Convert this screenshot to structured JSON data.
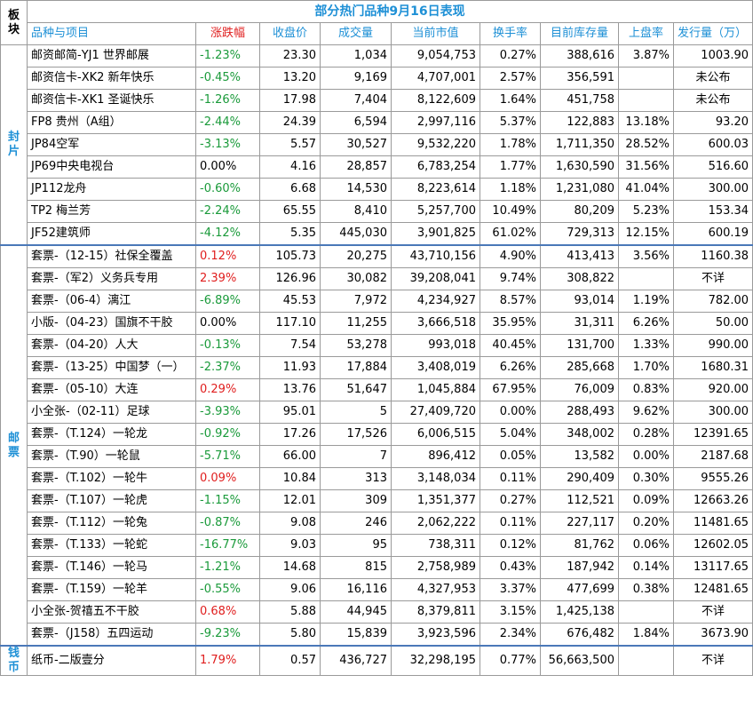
{
  "header": {
    "block_label": "板块",
    "title": "部分热门品种9月16日表现",
    "columns": [
      "品种与项目",
      "涨跌幅",
      "收盘价",
      "成交量",
      "当前市值",
      "换手率",
      "目前库存量",
      "上盘率",
      "发行量（万）"
    ]
  },
  "groups": [
    {
      "label": "封片",
      "rows": [
        {
          "name": "邮资邮简-YJ1 世界邮展",
          "change": "-1.23%",
          "close": "23.30",
          "volume": "1,034",
          "market_value": "9,054,753",
          "turnover": "0.27%",
          "inventory": "388,616",
          "listing_rate": "3.87%",
          "issue": "1003.90"
        },
        {
          "name": "邮资信卡-XK2 新年快乐",
          "change": "-0.45%",
          "close": "13.20",
          "volume": "9,169",
          "market_value": "4,707,001",
          "turnover": "2.57%",
          "inventory": "356,591",
          "listing_rate": "",
          "issue": "未公布"
        },
        {
          "name": "邮资信卡-XK1 圣诞快乐",
          "change": "-1.26%",
          "close": "17.98",
          "volume": "7,404",
          "market_value": "8,122,609",
          "turnover": "1.64%",
          "inventory": "451,758",
          "listing_rate": "",
          "issue": "未公布"
        },
        {
          "name": "FP8 贵州（A组）",
          "change": "-2.44%",
          "close": "24.39",
          "volume": "6,594",
          "market_value": "2,997,116",
          "turnover": "5.37%",
          "inventory": "122,883",
          "listing_rate": "13.18%",
          "issue": "93.20"
        },
        {
          "name": "JP84空军",
          "change": "-3.13%",
          "close": "5.57",
          "volume": "30,527",
          "market_value": "9,532,220",
          "turnover": "1.78%",
          "inventory": "1,711,350",
          "listing_rate": "28.52%",
          "issue": "600.03"
        },
        {
          "name": "JP69中央电视台",
          "change": "0.00%",
          "close": "4.16",
          "volume": "28,857",
          "market_value": "6,783,254",
          "turnover": "1.77%",
          "inventory": "1,630,590",
          "listing_rate": "31.56%",
          "issue": "516.60"
        },
        {
          "name": "JP112龙舟",
          "change": "-0.60%",
          "close": "6.68",
          "volume": "14,530",
          "market_value": "8,223,614",
          "turnover": "1.18%",
          "inventory": "1,231,080",
          "listing_rate": "41.04%",
          "issue": "300.00"
        },
        {
          "name": "TP2 梅兰芳",
          "change": "-2.24%",
          "close": "65.55",
          "volume": "8,410",
          "market_value": "5,257,700",
          "turnover": "10.49%",
          "inventory": "80,209",
          "listing_rate": "5.23%",
          "issue": "153.34"
        },
        {
          "name": "JF52建筑师",
          "change": "-4.12%",
          "close": "5.35",
          "volume": "445,030",
          "market_value": "3,901,825",
          "turnover": "61.02%",
          "inventory": "729,313",
          "listing_rate": "12.15%",
          "issue": "600.19"
        }
      ]
    },
    {
      "label": "邮票",
      "rows": [
        {
          "name": "套票-（12-15）社保全覆盖",
          "change": "0.12%",
          "close": "105.73",
          "volume": "20,275",
          "market_value": "43,710,156",
          "turnover": "4.90%",
          "inventory": "413,413",
          "listing_rate": "3.56%",
          "issue": "1160.38"
        },
        {
          "name": "套票-（军2）义务兵专用",
          "change": "2.39%",
          "close": "126.96",
          "volume": "30,082",
          "market_value": "39,208,041",
          "turnover": "9.74%",
          "inventory": "308,822",
          "listing_rate": "",
          "issue": "不详"
        },
        {
          "name": "套票-（06-4）漓江",
          "change": "-6.89%",
          "close": "45.53",
          "volume": "7,972",
          "market_value": "4,234,927",
          "turnover": "8.57%",
          "inventory": "93,014",
          "listing_rate": "1.19%",
          "issue": "782.00"
        },
        {
          "name": "小版-（04-23）国旗不干胶",
          "change": "0.00%",
          "close": "117.10",
          "volume": "11,255",
          "market_value": "3,666,518",
          "turnover": "35.95%",
          "inventory": "31,311",
          "listing_rate": "6.26%",
          "issue": "50.00"
        },
        {
          "name": "套票-（04-20）人大",
          "change": "-0.13%",
          "close": "7.54",
          "volume": "53,278",
          "market_value": "993,018",
          "turnover": "40.45%",
          "inventory": "131,700",
          "listing_rate": "1.33%",
          "issue": "990.00"
        },
        {
          "name": "套票-（13-25）中国梦（一）",
          "change": "-2.37%",
          "close": "11.93",
          "volume": "17,884",
          "market_value": "3,408,019",
          "turnover": "6.26%",
          "inventory": "285,668",
          "listing_rate": "1.70%",
          "issue": "1680.31"
        },
        {
          "name": "套票-（05-10）大连",
          "change": "0.29%",
          "close": "13.76",
          "volume": "51,647",
          "market_value": "1,045,884",
          "turnover": "67.95%",
          "inventory": "76,009",
          "listing_rate": "0.83%",
          "issue": "920.00"
        },
        {
          "name": "小全张-（02-11）足球",
          "change": "-3.93%",
          "close": "95.01",
          "volume": "5",
          "market_value": "27,409,720",
          "turnover": "0.00%",
          "inventory": "288,493",
          "listing_rate": "9.62%",
          "issue": "300.00"
        },
        {
          "name": "套票-（T.124）一轮龙",
          "change": "-0.92%",
          "close": "17.26",
          "volume": "17,526",
          "market_value": "6,006,515",
          "turnover": "5.04%",
          "inventory": "348,002",
          "listing_rate": "0.28%",
          "issue": "12391.65"
        },
        {
          "name": "套票-（T.90）一轮鼠",
          "change": "-5.71%",
          "close": "66.00",
          "volume": "7",
          "market_value": "896,412",
          "turnover": "0.05%",
          "inventory": "13,582",
          "listing_rate": "0.00%",
          "issue": "2187.68"
        },
        {
          "name": "套票-（T.102）一轮牛",
          "change": "0.09%",
          "close": "10.84",
          "volume": "313",
          "market_value": "3,148,034",
          "turnover": "0.11%",
          "inventory": "290,409",
          "listing_rate": "0.30%",
          "issue": "9555.26"
        },
        {
          "name": "套票-（T.107）一轮虎",
          "change": "-1.15%",
          "close": "12.01",
          "volume": "309",
          "market_value": "1,351,377",
          "turnover": "0.27%",
          "inventory": "112,521",
          "listing_rate": "0.09%",
          "issue": "12663.26"
        },
        {
          "name": "套票-（T.112）一轮兔",
          "change": "-0.87%",
          "close": "9.08",
          "volume": "246",
          "market_value": "2,062,222",
          "turnover": "0.11%",
          "inventory": "227,117",
          "listing_rate": "0.20%",
          "issue": "11481.65"
        },
        {
          "name": "套票-（T.133）一轮蛇",
          "change": "-16.77%",
          "close": "9.03",
          "volume": "95",
          "market_value": "738,311",
          "turnover": "0.12%",
          "inventory": "81,762",
          "listing_rate": "0.06%",
          "issue": "12602.05"
        },
        {
          "name": "套票-（T.146）一轮马",
          "change": "-1.21%",
          "close": "14.68",
          "volume": "815",
          "market_value": "2,758,989",
          "turnover": "0.43%",
          "inventory": "187,942",
          "listing_rate": "0.14%",
          "issue": "13117.65"
        },
        {
          "name": "套票-（T.159）一轮羊",
          "change": "-0.55%",
          "close": "9.06",
          "volume": "16,116",
          "market_value": "4,327,953",
          "turnover": "3.37%",
          "inventory": "477,699",
          "listing_rate": "0.38%",
          "issue": "12481.65"
        },
        {
          "name": "小全张-贺禧五不干胶",
          "change": "0.68%",
          "close": "5.88",
          "volume": "44,945",
          "market_value": "8,379,811",
          "turnover": "3.15%",
          "inventory": "1,425,138",
          "listing_rate": "",
          "issue": "不详"
        },
        {
          "name": "套票-（J158）五四运动",
          "change": "-9.23%",
          "close": "5.80",
          "volume": "15,839",
          "market_value": "3,923,596",
          "turnover": "2.34%",
          "inventory": "676,482",
          "listing_rate": "1.84%",
          "issue": "3673.90"
        }
      ]
    },
    {
      "label": "钱币",
      "rows": [
        {
          "name": "纸币-二版壹分",
          "change": "1.79%",
          "close": "0.57",
          "volume": "436,727",
          "market_value": "32,298,195",
          "turnover": "0.77%",
          "inventory": "56,663,500",
          "listing_rate": "",
          "issue": "不详"
        }
      ]
    }
  ],
  "colors": {
    "title": "#1e90d6",
    "positive": "#e01e1e",
    "negative": "#1a9a3a",
    "separator": "#4a78b8"
  }
}
